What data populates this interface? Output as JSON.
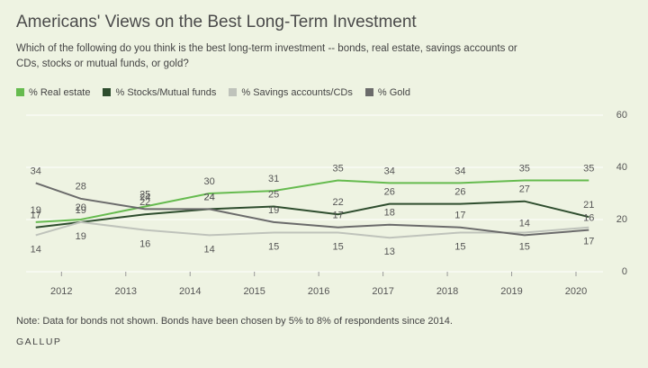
{
  "chart_data": {
    "type": "line",
    "title": "Americans' Views on the Best Long-Term Investment",
    "subtitle": "Which of the following do you think is the best long-term investment -- bonds, real estate, savings accounts or CDs, stocks or mutual funds, or gold?",
    "note": "Note: Data for bonds not shown. Bonds have been chosen by 5% to 8% of respondents since 2014.",
    "source": "GALLUP",
    "x": [
      2011.6,
      2012.3,
      2013.3,
      2014.3,
      2015.3,
      2016.3,
      2017.1,
      2018.2,
      2019.2,
      2020.2
    ],
    "xlim": [
      2011.45,
      2020.42
    ],
    "xticks": [
      2012,
      2013,
      2014,
      2015,
      2016,
      2017,
      2018,
      2019,
      2020
    ],
    "ylim": [
      0,
      60
    ],
    "yticks": [
      0,
      20,
      40,
      60
    ],
    "grid": true,
    "series": [
      {
        "name": "% Real estate",
        "color": "#66bb4f",
        "values": [
          19,
          20,
          25,
          30,
          31,
          35,
          34,
          34,
          35,
          35
        ]
      },
      {
        "name": "% Stocks/Mutual funds",
        "color": "#2e4d2e",
        "values": [
          17,
          19,
          22,
          24,
          25,
          22,
          26,
          26,
          27,
          21
        ]
      },
      {
        "name": "% Savings accounts/CDs",
        "color": "#bfc3bb",
        "values": [
          14,
          19,
          16,
          14,
          15,
          15,
          13,
          15,
          15,
          17
        ]
      },
      {
        "name": "% Gold",
        "color": "#6b6b6b",
        "values": [
          34,
          28,
          24,
          24,
          19,
          17,
          18,
          17,
          14,
          16
        ]
      }
    ]
  }
}
